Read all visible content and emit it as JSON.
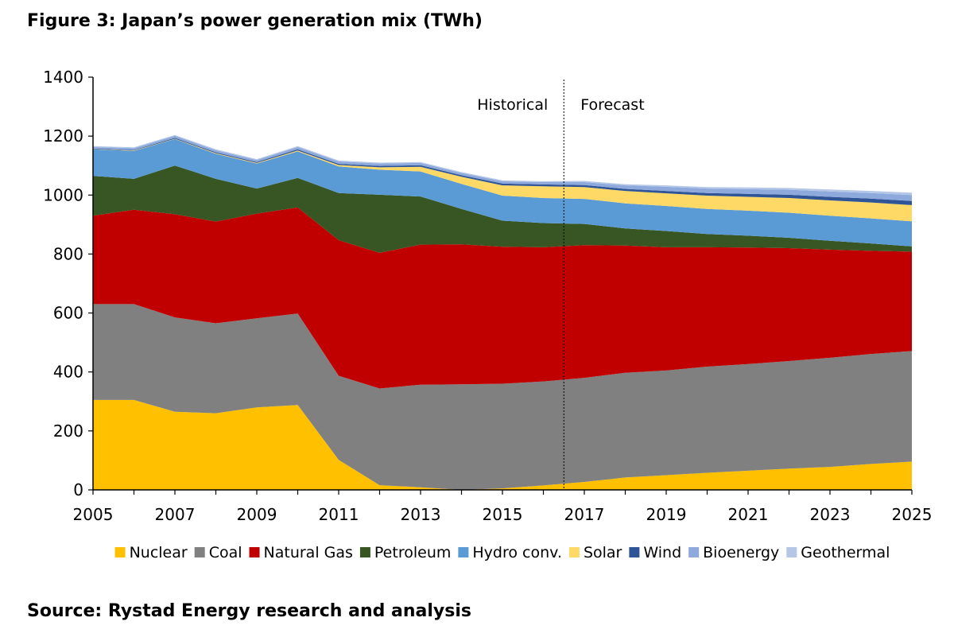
{
  "title": "Figure 3: Japan’s power generation mix (TWh)",
  "source": "Source: Rystad Energy research and analysis",
  "chart_data": {
    "type": "area",
    "stacked": true,
    "x": [
      2005,
      2006,
      2007,
      2008,
      2009,
      2010,
      2011,
      2012,
      2013,
      2014,
      2015,
      2016,
      2017,
      2018,
      2019,
      2020,
      2021,
      2022,
      2023,
      2024,
      2025
    ],
    "x_tick_labels": [
      "2005",
      "2007",
      "2009",
      "2011",
      "2013",
      "2015",
      "2017",
      "2019",
      "2021",
      "2023",
      "2025"
    ],
    "y_tick_labels": [
      "0",
      "200",
      "400",
      "600",
      "800",
      "1000",
      "1200",
      "1400"
    ],
    "ylim": [
      0,
      1400
    ],
    "xlim": [
      2005,
      2025
    ],
    "grid": false,
    "legend_position": "bottom",
    "annotations": {
      "historical": "Historical",
      "forecast": "Forecast",
      "divider_x": 2016.5
    },
    "series": [
      {
        "name": "Nuclear",
        "color": "#FFC000",
        "values": [
          305,
          305,
          265,
          260,
          280,
          288,
          102,
          16,
          9,
          0,
          5,
          15,
          27,
          42,
          50,
          58,
          65,
          72,
          78,
          88,
          96
        ]
      },
      {
        "name": "Coal",
        "color": "#808080",
        "values": [
          325,
          325,
          320,
          305,
          302,
          310,
          285,
          328,
          348,
          358,
          355,
          353,
          353,
          355,
          355,
          360,
          362,
          365,
          370,
          373,
          375
        ]
      },
      {
        "name": "Natural Gas",
        "color": "#C00000",
        "values": [
          300,
          320,
          350,
          345,
          355,
          360,
          460,
          460,
          475,
          475,
          465,
          455,
          450,
          432,
          418,
          405,
          395,
          383,
          367,
          350,
          337
        ]
      },
      {
        "name": "Petroleum",
        "color": "#375623",
        "values": [
          135,
          105,
          165,
          145,
          85,
          100,
          160,
          197,
          163,
          120,
          88,
          82,
          72,
          58,
          55,
          45,
          40,
          35,
          30,
          25,
          18
        ]
      },
      {
        "name": "Hydro conv.",
        "color": "#5B9BD5",
        "values": [
          90,
          95,
          90,
          85,
          85,
          90,
          90,
          85,
          85,
          85,
          85,
          85,
          85,
          85,
          85,
          85,
          85,
          85,
          85,
          85,
          85
        ]
      },
      {
        "name": "Solar",
        "color": "#FFD966",
        "values": [
          1,
          1,
          1,
          2,
          2,
          3,
          5,
          8,
          16,
          24,
          35,
          40,
          40,
          42,
          43,
          45,
          47,
          50,
          52,
          54,
          55
        ]
      },
      {
        "name": "Wind",
        "color": "#2F5597",
        "values": [
          2,
          2,
          3,
          3,
          3,
          4,
          4,
          5,
          5,
          5,
          6,
          6,
          7,
          7,
          8,
          9,
          10,
          11,
          12,
          13,
          14
        ]
      },
      {
        "name": "Bioenergy",
        "color": "#8EA9DB",
        "values": [
          5,
          6,
          7,
          7,
          7,
          8,
          8,
          8,
          8,
          8,
          8,
          8,
          10,
          12,
          14,
          15,
          16,
          17,
          18,
          19,
          20
        ]
      },
      {
        "name": "Geothermal",
        "color": "#B4C7E7",
        "values": [
          3,
          3,
          3,
          3,
          3,
          3,
          3,
          3,
          3,
          3,
          3,
          3,
          4,
          4,
          5,
          5,
          6,
          6,
          7,
          7,
          8
        ]
      }
    ]
  }
}
